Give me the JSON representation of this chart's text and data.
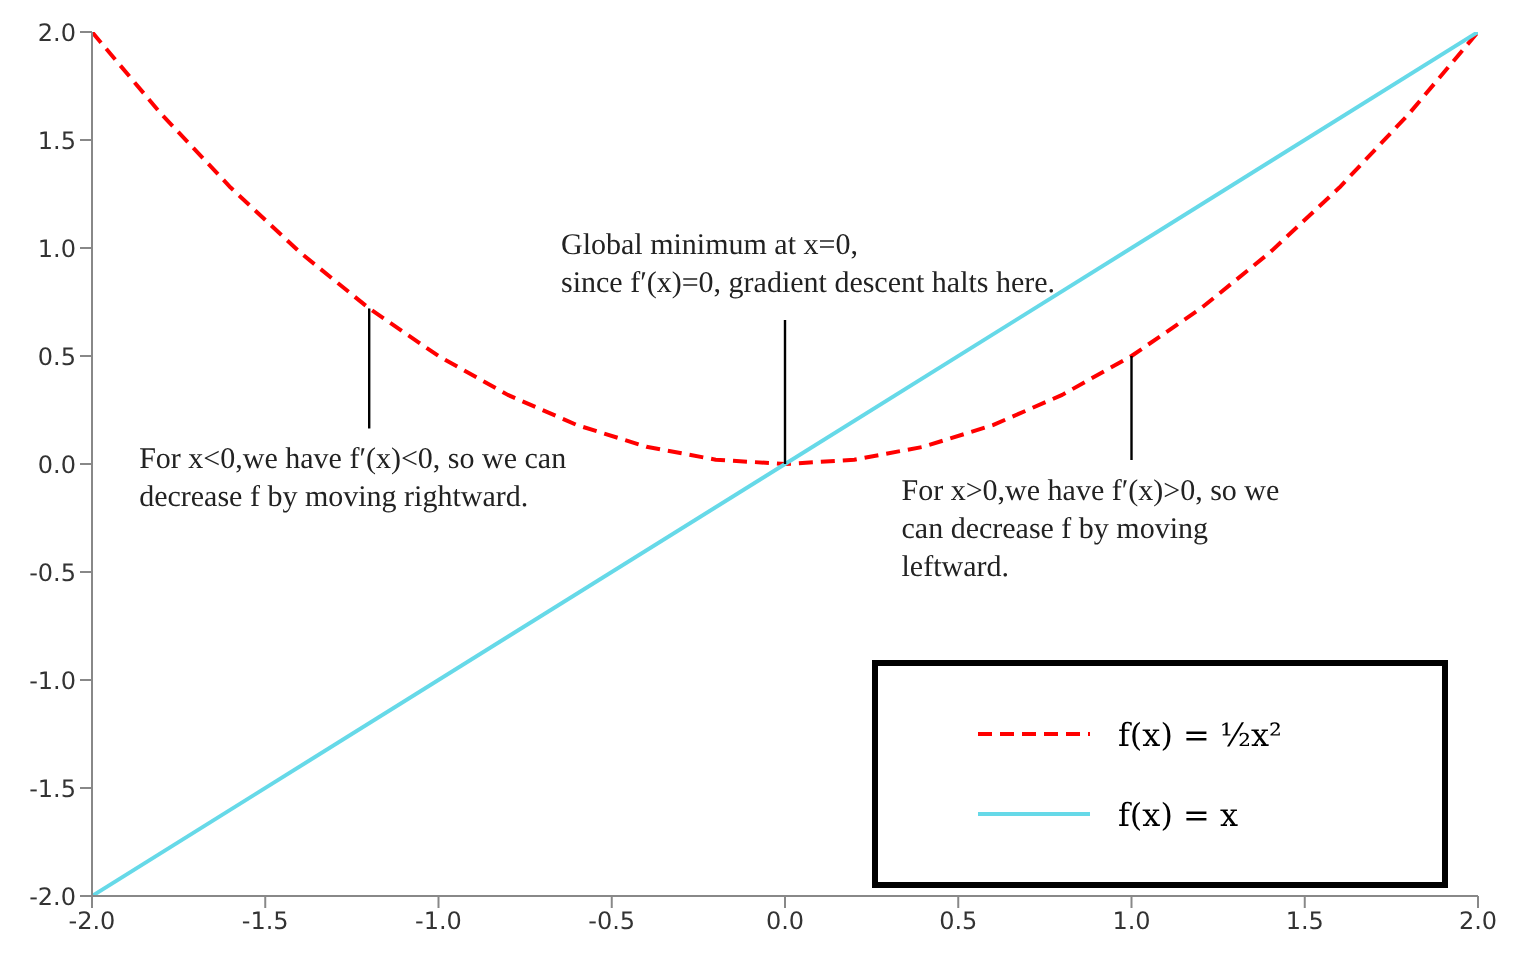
{
  "chart_data": {
    "type": "line",
    "series": [
      {
        "name": "f(x) = ½x²",
        "color": "#ff0000",
        "line_style": "dashed",
        "x": [
          -2,
          -1.8,
          -1.6,
          -1.4,
          -1.2,
          -1,
          -0.8,
          -0.6,
          -0.4,
          -0.2,
          0,
          0.2,
          0.4,
          0.6,
          0.8,
          1,
          1.2,
          1.4,
          1.6,
          1.8,
          2
        ],
        "values": [
          2,
          1.62,
          1.28,
          0.98,
          0.72,
          0.5,
          0.32,
          0.18,
          0.08,
          0.02,
          0,
          0.02,
          0.08,
          0.18,
          0.32,
          0.5,
          0.72,
          0.98,
          1.28,
          1.62,
          2
        ]
      },
      {
        "name": "f(x) = x",
        "color": "#66d9e8",
        "line_style": "solid",
        "x": [
          -2,
          2
        ],
        "values": [
          -2,
          2
        ]
      }
    ],
    "xlim": [
      -2,
      2
    ],
    "ylim": [
      -2,
      2
    ],
    "xticks": [
      {
        "value": -2,
        "label": "-2.0"
      },
      {
        "value": -1.5,
        "label": "-1.5"
      },
      {
        "value": -1,
        "label": "-1.0"
      },
      {
        "value": -0.5,
        "label": "-0.5"
      },
      {
        "value": 0,
        "label": "0.0"
      },
      {
        "value": 0.5,
        "label": "0.5"
      },
      {
        "value": 1,
        "label": "1.0"
      },
      {
        "value": 1.5,
        "label": "1.5"
      },
      {
        "value": 2,
        "label": "2.0"
      }
    ],
    "yticks": [
      {
        "value": -2,
        "label": "-2.0"
      },
      {
        "value": -1.5,
        "label": "-1.5"
      },
      {
        "value": -1,
        "label": "-1.0"
      },
      {
        "value": -0.5,
        "label": "-0.5"
      },
      {
        "value": 0,
        "label": "0.0"
      },
      {
        "value": 0.5,
        "label": "0.5"
      },
      {
        "value": 1,
        "label": "1.0"
      },
      {
        "value": 1.5,
        "label": "1.5"
      },
      {
        "value": 2,
        "label": "2.0"
      }
    ],
    "grid": false,
    "marker": "none",
    "legend": "bottom right",
    "annotations": [
      {
        "text": "For x<0,we have f′(x)<0, so we can\ndecrease f by moving rightward.",
        "x": -1.2,
        "y": 0.72
      },
      {
        "text": "Global minimum at x=0,\nsince f′(x)=0, gradient descent halts here.",
        "x": 0,
        "y": 0
      },
      {
        "text": "For x>0,we have f′(x)>0, so we\ncan decrease f by moving\nleftward.",
        "x": 1,
        "y": 0.5
      }
    ]
  }
}
